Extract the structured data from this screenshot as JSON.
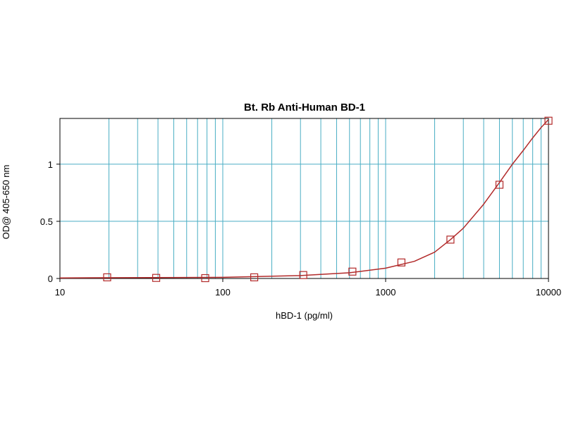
{
  "chart_data": {
    "type": "scatter",
    "title": "Bt. Rb Anti-Human BD-1",
    "xlabel": "hBD-1 (pg/ml)",
    "ylabel": "OD@ 405-650 nm",
    "x_scale": "log",
    "xlim": [
      10,
      10000
    ],
    "ylim": [
      0,
      1.4
    ],
    "x_ticks": [
      {
        "value": 10,
        "label": "10"
      },
      {
        "value": 100,
        "label": "100"
      },
      {
        "value": 1000,
        "label": "1000"
      },
      {
        "value": 10000,
        "label": "10000"
      }
    ],
    "y_ticks": [
      {
        "value": 0,
        "label": "0"
      },
      {
        "value": 0.5,
        "label": "0.5"
      },
      {
        "value": 1,
        "label": "1"
      }
    ],
    "grid": true,
    "grid_color": "#4aaec4",
    "series_color": "#b22a2a",
    "points": {
      "x": [
        19.5,
        39,
        78,
        156,
        312,
        625,
        1250,
        2500,
        5000,
        10000
      ],
      "y": [
        0.01,
        0.005,
        0.003,
        0.01,
        0.03,
        0.06,
        0.14,
        0.34,
        0.82,
        1.38
      ]
    },
    "fit_curve": {
      "x": [
        10,
        100,
        300,
        600,
        1000,
        1500,
        2000,
        2500,
        3000,
        4000,
        5000,
        6000,
        7000,
        8000,
        9000,
        10000
      ],
      "y": [
        0.005,
        0.01,
        0.025,
        0.05,
        0.09,
        0.15,
        0.23,
        0.34,
        0.44,
        0.65,
        0.84,
        1.0,
        1.12,
        1.23,
        1.32,
        1.39
      ]
    }
  }
}
